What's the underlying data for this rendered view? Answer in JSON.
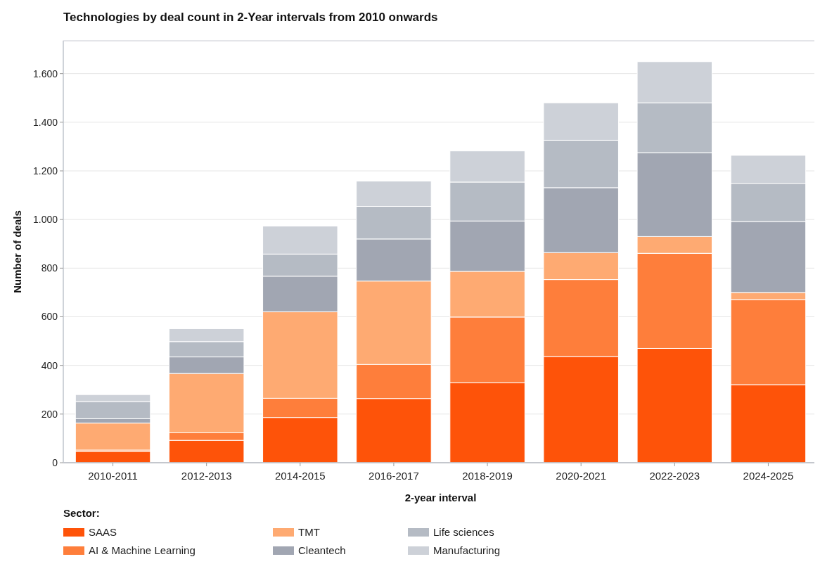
{
  "chart_data": {
    "type": "bar",
    "stacked": true,
    "title": "Technologies by deal count in 2-Year intervals from 2010 onwards",
    "xlabel": "2-year interval",
    "ylabel": "Number of deals",
    "legend_title": "Sector:",
    "legend": "bottom",
    "grid": "y",
    "categories": [
      "2010-2011",
      "2012-2013",
      "2014-2015",
      "2016-2017",
      "2018-2019",
      "2020-2021",
      "2022-2023",
      "2024-2025"
    ],
    "ylim": [
      0,
      1735
    ],
    "yticks": [
      0,
      200,
      400,
      600,
      800,
      {
        "value": 1000,
        "label": "1.000"
      },
      {
        "value": 1200,
        "label": "1.200"
      },
      {
        "value": 1400,
        "label": "1.400"
      },
      {
        "value": 1600,
        "label": "1.600"
      }
    ],
    "series": [
      {
        "name": "SAAS",
        "color": "#fe5309",
        "values": [
          45,
          92,
          186,
          264,
          329,
          437,
          470,
          321
        ]
      },
      {
        "name": "AI & Machine Learning",
        "color": "#fe7e3b",
        "values": [
          7,
          31,
          79,
          140,
          270,
          316,
          391,
          350
        ]
      },
      {
        "name": "TMT",
        "color": "#feaa72",
        "values": [
          111,
          244,
          356,
          343,
          188,
          111,
          69,
          29
        ]
      },
      {
        "name": "Cleantech",
        "color": "#a1a6b2",
        "values": [
          18,
          68,
          146,
          173,
          207,
          267,
          345,
          292
        ]
      },
      {
        "name": "Life sciences",
        "color": "#b5bbc4",
        "values": [
          70,
          63,
          91,
          134,
          160,
          195,
          205,
          157
        ]
      },
      {
        "name": "Manufacturing",
        "color": "#cdd1d8",
        "values": [
          29,
          53,
          115,
          104,
          128,
          154,
          169,
          115
        ]
      }
    ]
  }
}
